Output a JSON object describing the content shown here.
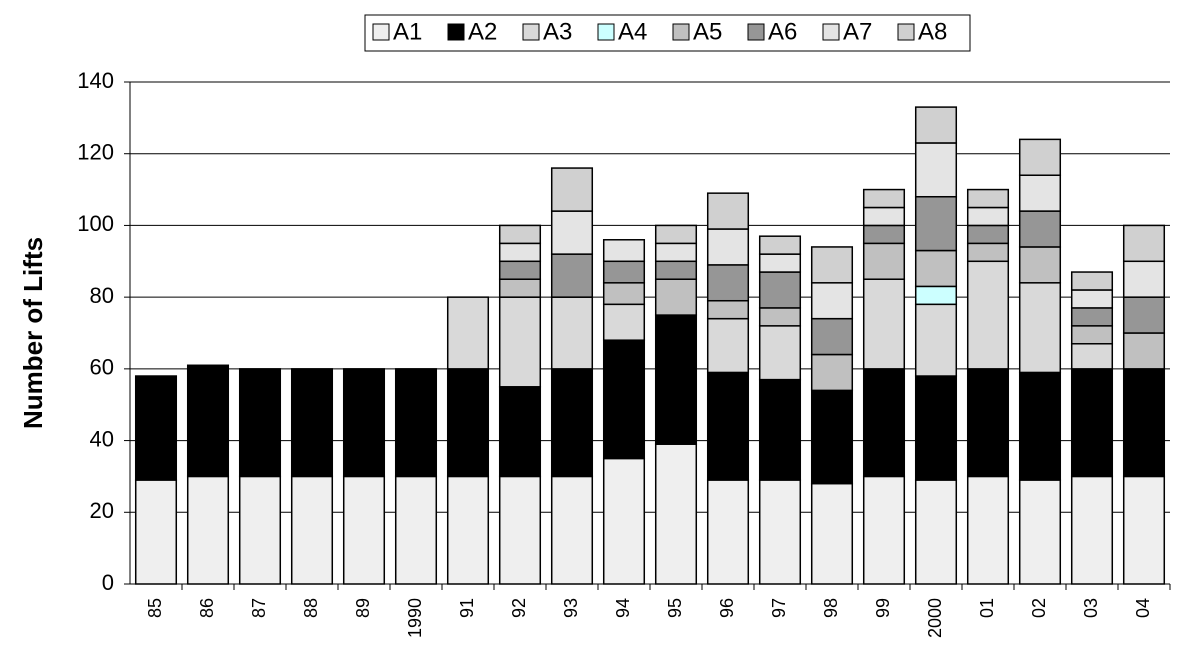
{
  "chart_data": {
    "type": "stacked_bar",
    "y_label": "Number of Lifts",
    "categories": [
      "85",
      "86",
      "87",
      "88",
      "89",
      "1990",
      "91",
      "92",
      "93",
      "94",
      "95",
      "96",
      "97",
      "98",
      "99",
      "2000",
      "01",
      "02",
      "03",
      "04"
    ],
    "series": [
      {
        "name": "A1",
        "color": "#efefef",
        "values": [
          29,
          30,
          30,
          30,
          30,
          30,
          30,
          30,
          30,
          35,
          39,
          29,
          29,
          28,
          30,
          29,
          30,
          29,
          30,
          30
        ]
      },
      {
        "name": "A2",
        "color": "#000000",
        "values": [
          29,
          31,
          30,
          30,
          30,
          30,
          30,
          25,
          30,
          33,
          36,
          30,
          28,
          26,
          30,
          29,
          30,
          30,
          30,
          30
        ]
      },
      {
        "name": "A3",
        "color": "#d9d9d9",
        "values": [
          0,
          0,
          0,
          0,
          0,
          0,
          20,
          25,
          20,
          10,
          0,
          15,
          15,
          0,
          25,
          20,
          30,
          25,
          7,
          0
        ]
      },
      {
        "name": "A4",
        "color": "#ccffff",
        "values": [
          0,
          0,
          0,
          0,
          0,
          0,
          0,
          0,
          0,
          0,
          0,
          0,
          0,
          0,
          0,
          5,
          0,
          0,
          0,
          0
        ]
      },
      {
        "name": "A5",
        "color": "#c0c0c0",
        "values": [
          0,
          0,
          0,
          0,
          0,
          0,
          0,
          5,
          0,
          6,
          10,
          5,
          5,
          10,
          10,
          10,
          5,
          10,
          5,
          10
        ]
      },
      {
        "name": "A6",
        "color": "#969696",
        "values": [
          0,
          0,
          0,
          0,
          0,
          0,
          0,
          5,
          12,
          6,
          5,
          10,
          10,
          10,
          5,
          15,
          5,
          10,
          5,
          10
        ]
      },
      {
        "name": "A7",
        "color": "#e4e4e4",
        "values": [
          0,
          0,
          0,
          0,
          0,
          0,
          0,
          5,
          12,
          6,
          5,
          10,
          5,
          10,
          5,
          15,
          5,
          10,
          5,
          10
        ]
      },
      {
        "name": "A8",
        "color": "#d0d0d0",
        "values": [
          0,
          0,
          0,
          0,
          0,
          0,
          0,
          5,
          12,
          0,
          5,
          10,
          5,
          10,
          5,
          10,
          5,
          10,
          5,
          10
        ]
      }
    ],
    "ylim": [
      0,
      140
    ],
    "yticks": [
      0,
      20,
      40,
      60,
      80,
      100,
      120,
      140
    ],
    "grid": true,
    "legend": "top"
  }
}
